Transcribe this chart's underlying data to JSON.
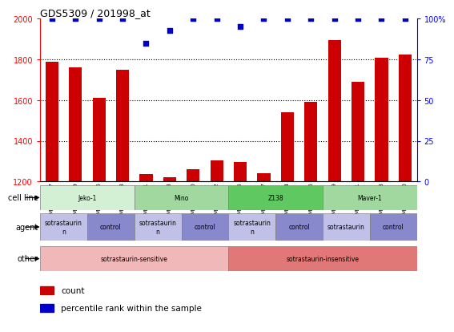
{
  "title": "GDS5309 / 201998_at",
  "samples": [
    "GSM1044967",
    "GSM1044969",
    "GSM1044966",
    "GSM1044968",
    "GSM1044971",
    "GSM1044973",
    "GSM1044970",
    "GSM1044972",
    "GSM1044975",
    "GSM1044977",
    "GSM1044974",
    "GSM1044976",
    "GSM1044979",
    "GSM1044981",
    "GSM1044978",
    "GSM1044980"
  ],
  "counts": [
    1790,
    1760,
    1610,
    1750,
    1235,
    1220,
    1260,
    1305,
    1295,
    1240,
    1540,
    1590,
    1895,
    1690,
    1810,
    1825
  ],
  "percentiles": [
    100,
    100,
    100,
    100,
    85,
    93,
    100,
    100,
    95,
    100,
    100,
    100,
    100,
    100,
    100,
    100
  ],
  "bar_color": "#cc0000",
  "dot_color": "#0000cc",
  "ylim_left": [
    1200,
    2000
  ],
  "ylim_right": [
    0,
    100
  ],
  "yticks_left": [
    1200,
    1400,
    1600,
    1800,
    2000
  ],
  "yticks_right": [
    0,
    25,
    50,
    75,
    100
  ],
  "cell_lines": [
    {
      "label": "Jeko-1",
      "start": 0,
      "end": 4,
      "color": "#d4f0d4"
    },
    {
      "label": "Mino",
      "start": 4,
      "end": 8,
      "color": "#a0d8a0"
    },
    {
      "label": "Z138",
      "start": 8,
      "end": 12,
      "color": "#60c860"
    },
    {
      "label": "Maver-1",
      "start": 12,
      "end": 16,
      "color": "#a0d8a0"
    }
  ],
  "agents": [
    {
      "label": "sotrastaurin\nn",
      "start": 0,
      "end": 2,
      "color": "#c0c0e8"
    },
    {
      "label": "control",
      "start": 2,
      "end": 4,
      "color": "#8888cc"
    },
    {
      "label": "sotrastaurin\nn",
      "start": 4,
      "end": 6,
      "color": "#c0c0e8"
    },
    {
      "label": "control",
      "start": 6,
      "end": 8,
      "color": "#8888cc"
    },
    {
      "label": "sotrastaurin\nn",
      "start": 8,
      "end": 10,
      "color": "#c0c0e8"
    },
    {
      "label": "control",
      "start": 10,
      "end": 12,
      "color": "#8888cc"
    },
    {
      "label": "sotrastaurin",
      "start": 12,
      "end": 14,
      "color": "#c0c0e8"
    },
    {
      "label": "control",
      "start": 14,
      "end": 16,
      "color": "#8888cc"
    }
  ],
  "others": [
    {
      "label": "sotrastaurin-sensitive",
      "start": 0,
      "end": 8,
      "color": "#f0b8b8"
    },
    {
      "label": "sotrastaurin-insensitive",
      "start": 8,
      "end": 16,
      "color": "#e07878"
    }
  ],
  "row_labels": [
    "cell line",
    "agent",
    "other"
  ],
  "legend_count_color": "#cc0000",
  "legend_dot_color": "#0000cc",
  "dotted_gridlines": [
    1400,
    1600,
    1800
  ],
  "background_color": "#ffffff"
}
